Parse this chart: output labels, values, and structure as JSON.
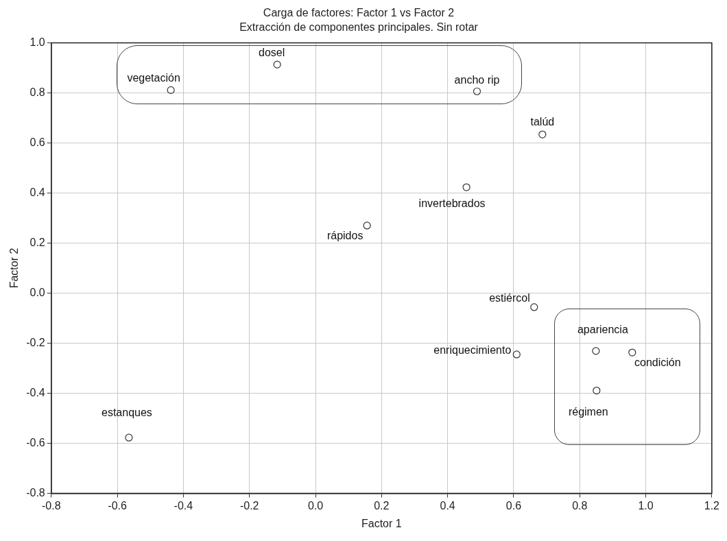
{
  "chart_data": {
    "type": "scatter",
    "title": "Carga de factores: Factor 1 vs Factor 2",
    "subtitle": "Extracción de componentes principales. Sin rotar",
    "xlabel": "Factor 1",
    "ylabel": "Factor 2",
    "x": [
      -0.438,
      -0.116,
      0.489,
      0.687,
      0.457,
      0.156,
      0.662,
      0.609,
      0.849,
      0.959,
      0.851,
      -0.565
    ],
    "series": [
      {
        "color": "#333333",
        "values": [
          0.811,
          0.913,
          0.806,
          0.634,
          0.423,
          0.27,
          -0.056,
          -0.245,
          -0.231,
          -0.237,
          -0.389,
          -0.577
        ]
      }
    ],
    "annotations": [
      {
        "text": "vegetación",
        "x": -0.438,
        "y": 0.811
      },
      {
        "text": "dosel",
        "x": -0.116,
        "y": 0.913
      },
      {
        "text": "ancho rip",
        "x": 0.489,
        "y": 0.806
      },
      {
        "text": "talúd",
        "x": 0.687,
        "y": 0.634
      },
      {
        "text": "invertebrados",
        "x": 0.457,
        "y": 0.423
      },
      {
        "text": "rápidos",
        "x": 0.156,
        "y": 0.27
      },
      {
        "text": "estiércol",
        "x": 0.662,
        "y": -0.056
      },
      {
        "text": "enriquecimiento",
        "x": 0.609,
        "y": -0.245
      },
      {
        "text": "apariencia",
        "x": 0.849,
        "y": -0.231
      },
      {
        "text": "condición",
        "x": 0.959,
        "y": -0.237
      },
      {
        "text": "régimen",
        "x": 0.851,
        "y": -0.389
      },
      {
        "text": "estanques",
        "x": -0.565,
        "y": -0.577
      }
    ],
    "xlim": [
      -0.8,
      1.2
    ],
    "xticks": [
      -0.8,
      -0.6,
      -0.4,
      -0.2,
      {
        "value": 0,
        "label": "0.0"
      },
      0.2,
      0.4,
      0.6,
      0.8,
      {
        "value": 1,
        "label": "1.0"
      },
      1.2
    ],
    "ylim": [
      -0.8,
      1.0
    ],
    "yticks": [
      -0.8,
      -0.6,
      -0.4,
      -0.2,
      {
        "value": 0,
        "label": "0.0"
      },
      0.2,
      0.4,
      0.6,
      0.8,
      {
        "value": 1,
        "label": "1.0"
      }
    ],
    "grid": true,
    "marker": "circle",
    "legend": false
  }
}
